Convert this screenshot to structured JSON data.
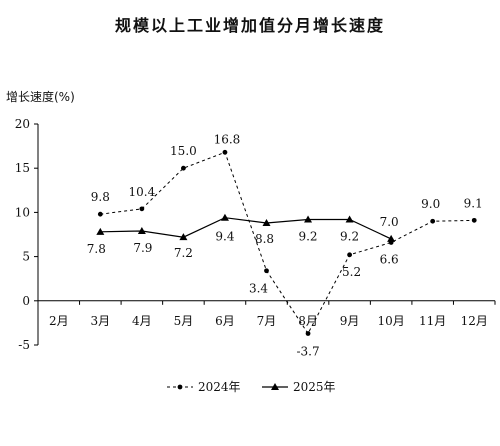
{
  "title": "规模以上工业增加值分月增长速度",
  "chart_data": {
    "type": "line",
    "title": "规模以上工业增加值分月增长速度",
    "ylabel": "增长速度(%)",
    "xlabel": "",
    "categories": [
      "2月",
      "3月",
      "4月",
      "5月",
      "6月",
      "7月",
      "8月",
      "9月",
      "10月",
      "11月",
      "12月"
    ],
    "ylim": [
      -5,
      20
    ],
    "yticks": [
      -5,
      0,
      5,
      10,
      15,
      20
    ],
    "grid": false,
    "legend_position": "bottom",
    "series": [
      {
        "name": "2024年",
        "style": "dashed",
        "marker": "circle",
        "values": [
          null,
          9.8,
          10.4,
          15.0,
          16.8,
          3.4,
          -3.7,
          5.2,
          6.6,
          9.0,
          9.1
        ],
        "labels": [
          "",
          "9.8",
          "10.4",
          "15.0",
          "16.8",
          "3.4",
          "-3.7",
          "5.2",
          "6.6",
          "9.0",
          "9.1"
        ]
      },
      {
        "name": "2025年",
        "style": "solid",
        "marker": "triangle",
        "values": [
          null,
          7.8,
          7.9,
          7.2,
          9.4,
          8.8,
          9.2,
          9.2,
          7.0,
          null,
          null
        ],
        "labels": [
          "",
          "7.8",
          "7.9",
          "7.2",
          "9.4",
          "8.8",
          "9.2",
          "9.2",
          "7.0",
          "",
          ""
        ]
      }
    ]
  },
  "colors": {
    "line": "#000000",
    "text": "#111111"
  }
}
